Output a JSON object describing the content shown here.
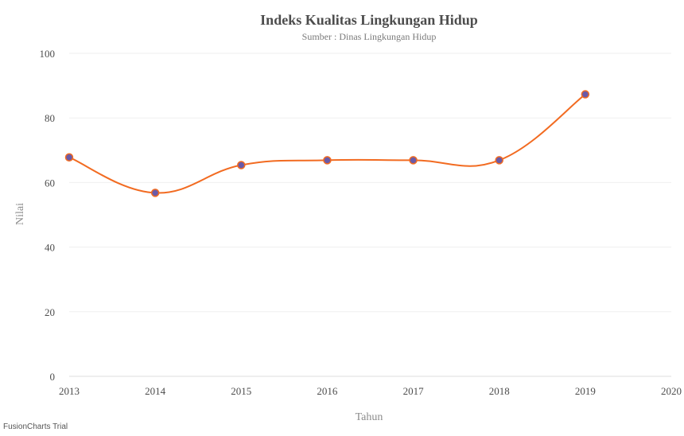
{
  "chart_data": {
    "type": "line",
    "title": "Indeks Kualitas Lingkungan Hidup",
    "subtitle": "Sumber : Dinas Lingkungan Hidup",
    "xlabel": "Tahun",
    "ylabel": "Nilai",
    "x": [
      2013,
      2014,
      2015,
      2016,
      2017,
      2018,
      2019
    ],
    "x_ticks": [
      "2013",
      "2014",
      "2015",
      "2016",
      "2017",
      "2018",
      "2019",
      "2020"
    ],
    "xlim": [
      2013,
      2020
    ],
    "y_ticks": [
      "0",
      "20",
      "40",
      "60",
      "80",
      "100"
    ],
    "ylim": [
      0,
      100
    ],
    "grid": true,
    "curve": "smooth",
    "series": [
      {
        "values": [
          67.8,
          56.8,
          65.4,
          66.9,
          66.9,
          66.9,
          87.3
        ],
        "line_color": "#f26b21",
        "marker_color": "#6a5aa8"
      }
    ]
  },
  "watermark": "FusionCharts Trial"
}
